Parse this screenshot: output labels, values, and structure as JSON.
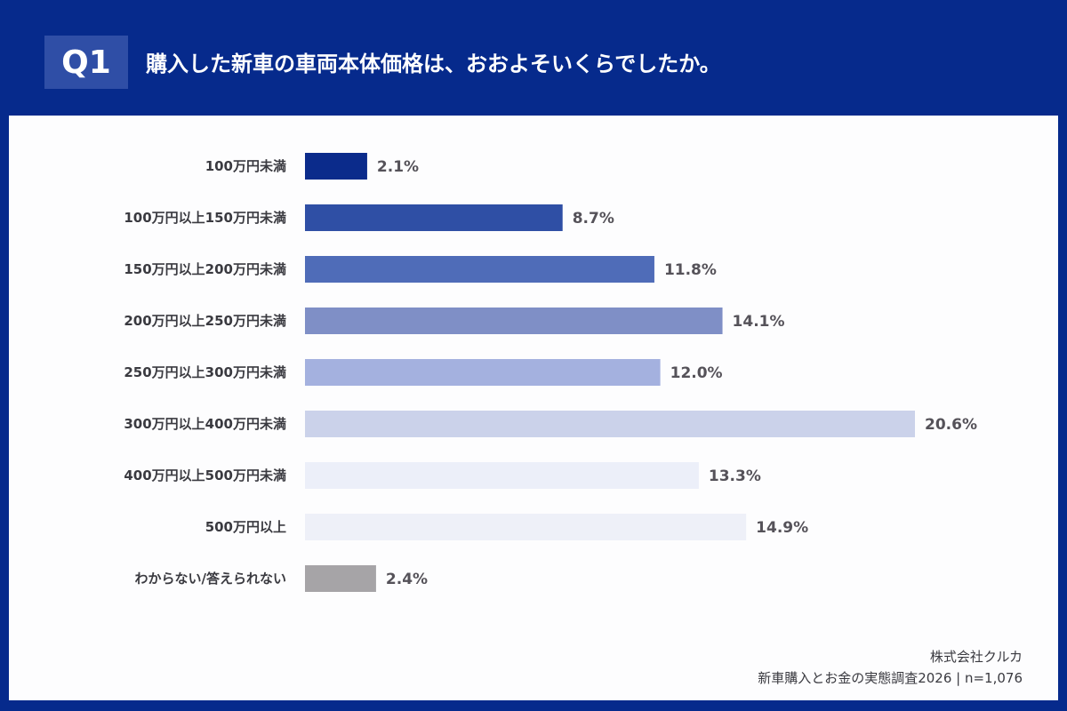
{
  "header": {
    "badge": "Q1",
    "title": "購入した新車の車両本体価格は、おおよそいくらでしたか。"
  },
  "chart_data": {
    "type": "bar",
    "orientation": "horizontal",
    "title": "購入した新車の車両本体価格は、おおよそいくらでしたか。",
    "categories": [
      "100万円未満",
      "100万円以上150万円未満",
      "150万円以上200万円未満",
      "200万円以上250万円未満",
      "250万円以上300万円未満",
      "300万円以上400万円未満",
      "400万円以上500万円未満",
      "500万円以上",
      "わからない/答えられない"
    ],
    "values": [
      2.1,
      8.7,
      11.8,
      14.1,
      12.0,
      20.6,
      13.3,
      14.9,
      2.4
    ],
    "labels": [
      "2.1%",
      "8.7%",
      "11.8%",
      "14.1%",
      "12.0%",
      "20.6%",
      "13.3%",
      "14.9%",
      "2.4%"
    ],
    "colors": [
      "#0b2b8b",
      "#2f4fa5",
      "#4f6cb8",
      "#7f8fc6",
      "#a4b1df",
      "#cbd2ea",
      "#eceff9",
      "#eef0f8",
      "#a6a4a7"
    ],
    "unit": "%",
    "xlim": [
      0,
      21
    ],
    "grid": false
  },
  "footer": {
    "company": "株式会社クルカ",
    "source": "新車購入とお金の実態調査2026 | n=1,076"
  }
}
